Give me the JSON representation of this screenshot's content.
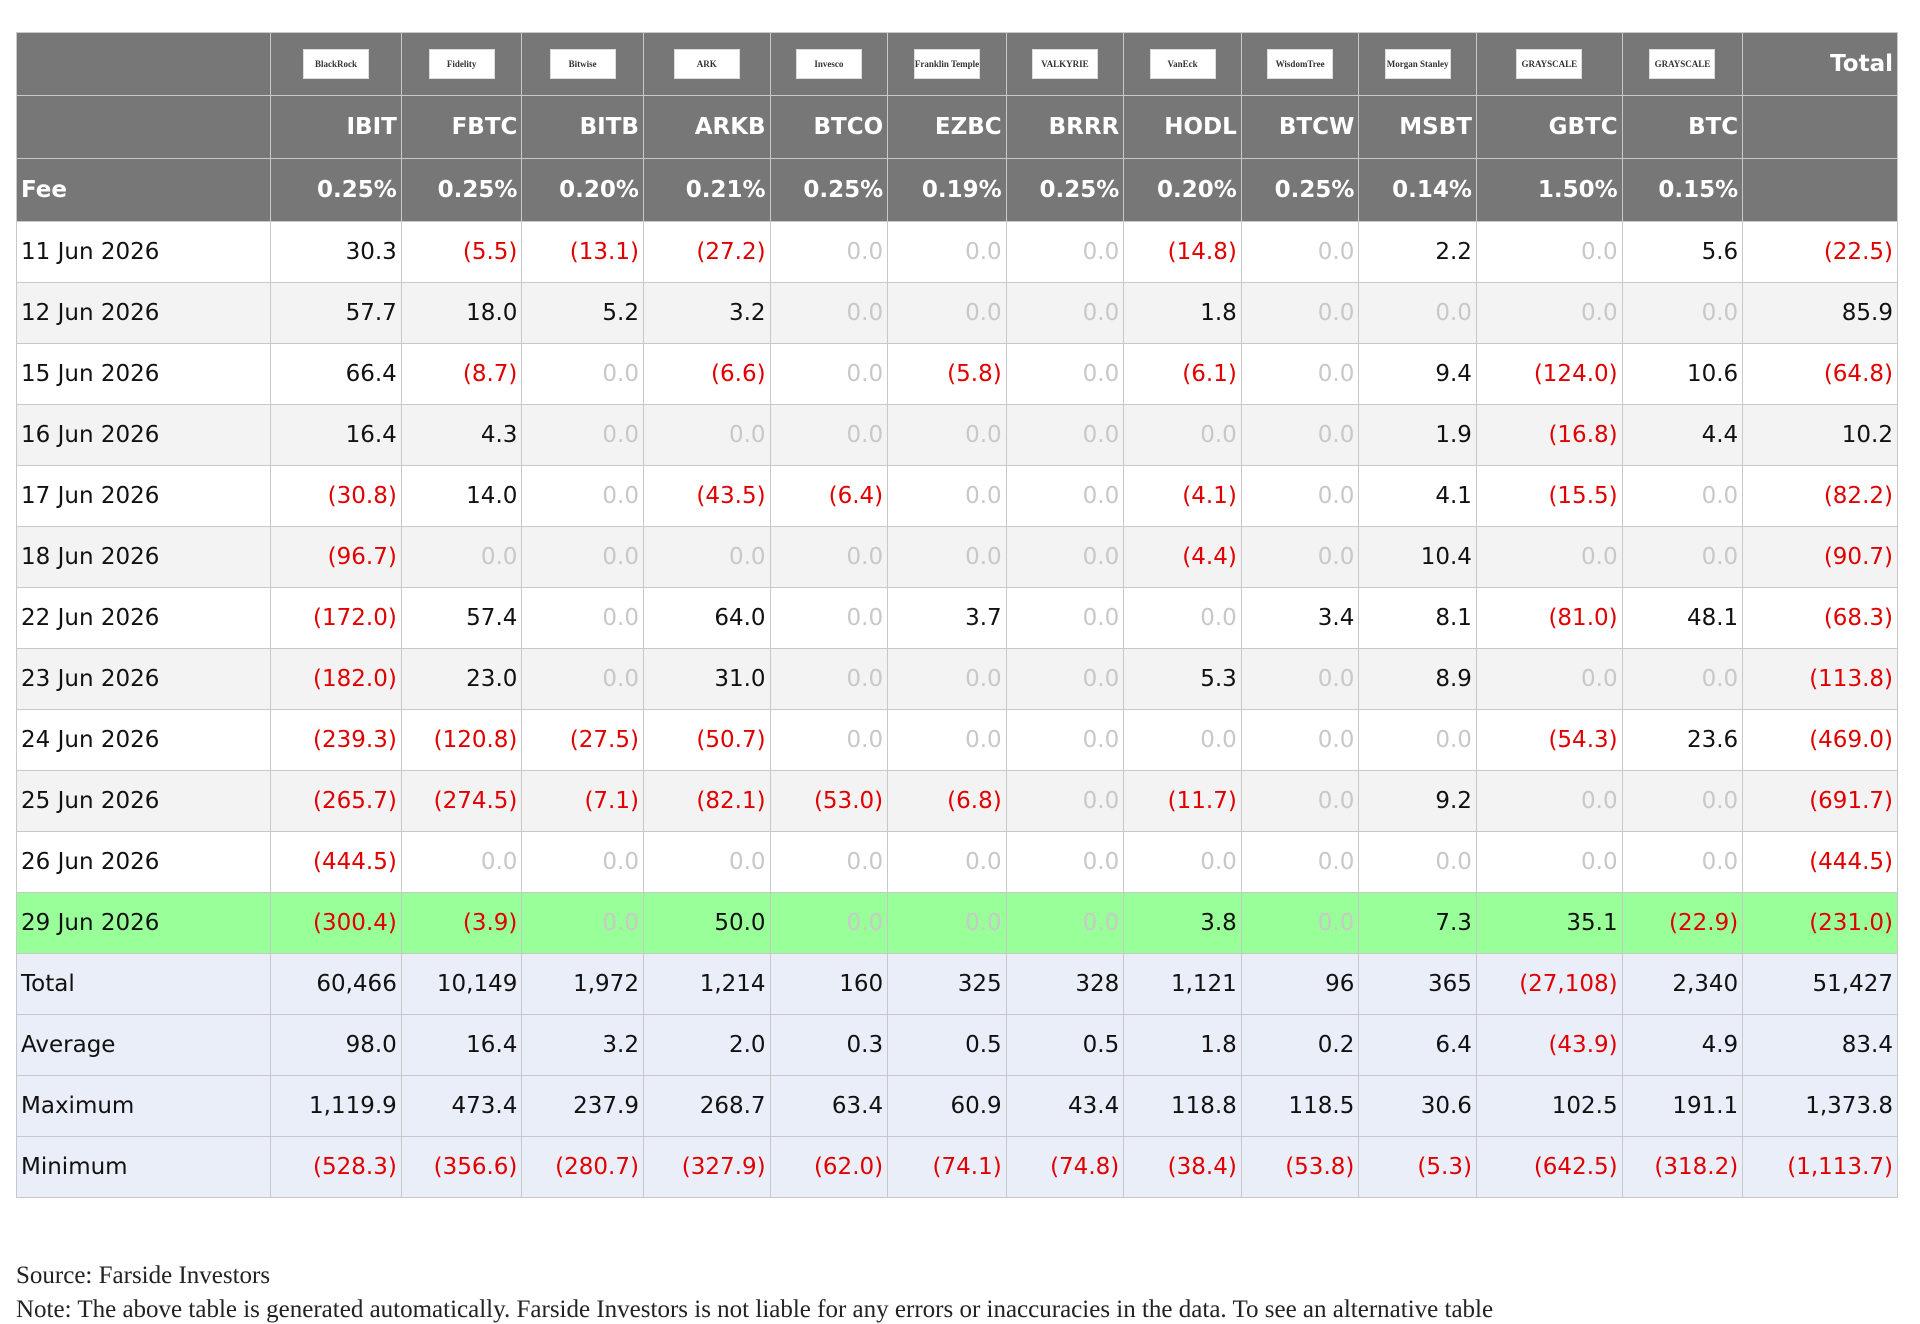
{
  "header": {
    "total_label": "Total",
    "logos": [
      {
        "icon": "blackrock-logo",
        "text": "BlackRock"
      },
      {
        "icon": "fidelity-logo",
        "text": "Fidelity"
      },
      {
        "icon": "bitwise-logo",
        "text": "Bitwise"
      },
      {
        "icon": "ark-logo",
        "text": "ARK"
      },
      {
        "icon": "invesco-logo",
        "text": "Invesco"
      },
      {
        "icon": "franklin-templeton-logo",
        "text": "Franklin Templeton"
      },
      {
        "icon": "valkyrie-logo",
        "text": "VALKYRIE"
      },
      {
        "icon": "vaneck-logo",
        "text": "VanEck"
      },
      {
        "icon": "wisdomtree-logo",
        "text": "WisdomTree"
      },
      {
        "icon": "morgan-stanley-logo",
        "text": "Morgan Stanley"
      },
      {
        "icon": "grayscale-logo",
        "text": "GRAYSCALE"
      },
      {
        "icon": "grayscale-logo",
        "text": "GRAYSCALE"
      }
    ],
    "tickers": [
      "IBIT",
      "FBTC",
      "BITB",
      "ARKB",
      "BTCO",
      "EZBC",
      "BRRR",
      "HODL",
      "BTCW",
      "MSBT",
      "GBTC",
      "BTC"
    ],
    "fee_label": "Fee",
    "fees": [
      "0.25%",
      "0.25%",
      "0.20%",
      "0.21%",
      "0.25%",
      "0.19%",
      "0.25%",
      "0.20%",
      "0.25%",
      "0.14%",
      "1.50%",
      "0.15%"
    ]
  },
  "rows": [
    {
      "date": "11 Jun 2026",
      "values": [
        "30.3",
        "(5.5)",
        "(13.1)",
        "(27.2)",
        "0.0",
        "0.0",
        "0.0",
        "(14.8)",
        "0.0",
        "2.2",
        "0.0",
        "5.6"
      ],
      "total": "(22.5)"
    },
    {
      "date": "12 Jun 2026",
      "values": [
        "57.7",
        "18.0",
        "5.2",
        "3.2",
        "0.0",
        "0.0",
        "0.0",
        "1.8",
        "0.0",
        "0.0",
        "0.0",
        "0.0"
      ],
      "total": "85.9"
    },
    {
      "date": "15 Jun 2026",
      "values": [
        "66.4",
        "(8.7)",
        "0.0",
        "(6.6)",
        "0.0",
        "(5.8)",
        "0.0",
        "(6.1)",
        "0.0",
        "9.4",
        "(124.0)",
        "10.6"
      ],
      "total": "(64.8)"
    },
    {
      "date": "16 Jun 2026",
      "values": [
        "16.4",
        "4.3",
        "0.0",
        "0.0",
        "0.0",
        "0.0",
        "0.0",
        "0.0",
        "0.0",
        "1.9",
        "(16.8)",
        "4.4"
      ],
      "total": "10.2"
    },
    {
      "date": "17 Jun 2026",
      "values": [
        "(30.8)",
        "14.0",
        "0.0",
        "(43.5)",
        "(6.4)",
        "0.0",
        "0.0",
        "(4.1)",
        "0.0",
        "4.1",
        "(15.5)",
        "0.0"
      ],
      "total": "(82.2)"
    },
    {
      "date": "18 Jun 2026",
      "values": [
        "(96.7)",
        "0.0",
        "0.0",
        "0.0",
        "0.0",
        "0.0",
        "0.0",
        "(4.4)",
        "0.0",
        "10.4",
        "0.0",
        "0.0"
      ],
      "total": "(90.7)"
    },
    {
      "date": "22 Jun 2026",
      "values": [
        "(172.0)",
        "57.4",
        "0.0",
        "64.0",
        "0.0",
        "3.7",
        "0.0",
        "0.0",
        "3.4",
        "8.1",
        "(81.0)",
        "48.1"
      ],
      "total": "(68.3)"
    },
    {
      "date": "23 Jun 2026",
      "values": [
        "(182.0)",
        "23.0",
        "0.0",
        "31.0",
        "0.0",
        "0.0",
        "0.0",
        "5.3",
        "0.0",
        "8.9",
        "0.0",
        "0.0"
      ],
      "total": "(113.8)"
    },
    {
      "date": "24 Jun 2026",
      "values": [
        "(239.3)",
        "(120.8)",
        "(27.5)",
        "(50.7)",
        "0.0",
        "0.0",
        "0.0",
        "0.0",
        "0.0",
        "0.0",
        "(54.3)",
        "23.6"
      ],
      "total": "(469.0)"
    },
    {
      "date": "25 Jun 2026",
      "values": [
        "(265.7)",
        "(274.5)",
        "(7.1)",
        "(82.1)",
        "(53.0)",
        "(6.8)",
        "0.0",
        "(11.7)",
        "0.0",
        "9.2",
        "0.0",
        "0.0"
      ],
      "total": "(691.7)"
    },
    {
      "date": "26 Jun 2026",
      "values": [
        "(444.5)",
        "0.0",
        "0.0",
        "0.0",
        "0.0",
        "0.0",
        "0.0",
        "0.0",
        "0.0",
        "0.0",
        "0.0",
        "0.0"
      ],
      "total": "(444.5)"
    },
    {
      "date": "29 Jun 2026",
      "highlight": true,
      "values": [
        "(300.4)",
        "(3.9)",
        "0.0",
        "50.0",
        "0.0",
        "0.0",
        "0.0",
        "3.8",
        "0.0",
        "7.3",
        "35.1",
        "(22.9)"
      ],
      "total": "(231.0)"
    }
  ],
  "summary": [
    {
      "label": "Total",
      "values": [
        "60,466",
        "10,149",
        "1,972",
        "1,214",
        "160",
        "325",
        "328",
        "1,121",
        "96",
        "365",
        "(27,108)",
        "2,340"
      ],
      "total": "51,427"
    },
    {
      "label": "Average",
      "values": [
        "98.0",
        "16.4",
        "3.2",
        "2.0",
        "0.3",
        "0.5",
        "0.5",
        "1.8",
        "0.2",
        "6.4",
        "(43.9)",
        "4.9"
      ],
      "total": "83.4"
    },
    {
      "label": "Maximum",
      "values": [
        "1,119.9",
        "473.4",
        "237.9",
        "268.7",
        "63.4",
        "60.9",
        "43.4",
        "118.8",
        "118.5",
        "30.6",
        "102.5",
        "191.1"
      ],
      "total": "1,373.8"
    },
    {
      "label": "Minimum",
      "values": [
        "(528.3)",
        "(356.6)",
        "(280.7)",
        "(327.9)",
        "(62.0)",
        "(74.1)",
        "(74.8)",
        "(38.4)",
        "(53.8)",
        "(5.3)",
        "(642.5)",
        "(318.2)"
      ],
      "total": "(1,113.7)"
    }
  ],
  "colors": {
    "header_bg": "#777777",
    "negative": "#e00000",
    "zero": "#c8c8c8",
    "highlight_row": "#99ff99",
    "summary_bg": "#eaeef8"
  },
  "footer": {
    "source": "Source: Farside Investors",
    "note": "Note: The above table is generated automatically. Farside Investors is not liable for any errors or inaccuracies in the data. To see an alternative table"
  }
}
